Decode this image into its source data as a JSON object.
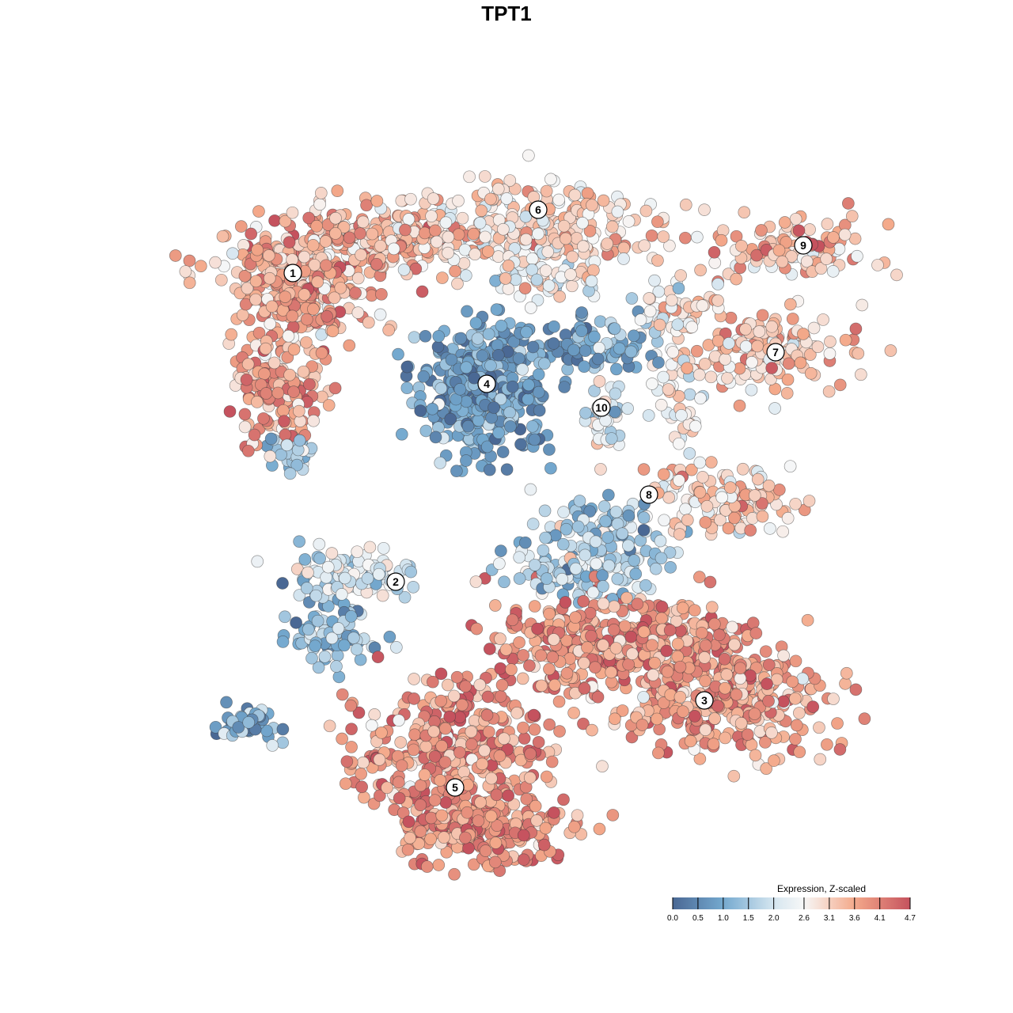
{
  "chart_data": {
    "type": "scatter",
    "title": "TPT1",
    "xlabel": "",
    "ylabel": "",
    "xlim": [
      -9,
      10
    ],
    "ylim": [
      -10,
      9
    ],
    "grid": false,
    "legend": {
      "title": "Expression, Z-scaled",
      "placement": "bottom-right",
      "ticks": [
        0.0,
        0.5,
        1.0,
        1.5,
        2.0,
        2.6,
        3.1,
        3.6,
        4.1,
        4.7
      ],
      "tick_labels": [
        "0.0",
        "0.5",
        "1.0",
        "1.5",
        "2.0",
        "2.6",
        "3.1",
        "3.6",
        "4.1",
        "4.7"
      ],
      "color_stops": [
        {
          "value": 0.0,
          "color": "#4a6894"
        },
        {
          "value": 1.0,
          "color": "#74a9cf"
        },
        {
          "value": 2.0,
          "color": "#d6e6f0"
        },
        {
          "value": 2.6,
          "color": "#f7f7f7"
        },
        {
          "value": 3.6,
          "color": "#f4a98a"
        },
        {
          "value": 4.7,
          "color": "#c5525e"
        }
      ]
    },
    "clusters": [
      {
        "label": "1",
        "center": [
          -5.4,
          5.9
        ],
        "blobs": [
          [
            -5.2,
            5.8,
            1.3,
            1.1,
            350,
            3.5
          ],
          [
            -5.8,
            3.0,
            0.9,
            1.0,
            150,
            3.7
          ],
          [
            -3.0,
            6.8,
            1.5,
            0.7,
            200,
            3.3
          ],
          [
            -5.5,
            1.4,
            0.6,
            0.3,
            40,
            1.6
          ]
        ]
      },
      {
        "label": "6",
        "center": [
          0.8,
          7.5
        ],
        "blobs": [
          [
            0.8,
            7.0,
            2.0,
            0.8,
            300,
            3.0
          ],
          [
            1.0,
            5.8,
            1.0,
            0.4,
            50,
            2.4
          ]
        ]
      },
      {
        "label": "9",
        "center": [
          7.5,
          6.6
        ],
        "blobs": [
          [
            7.3,
            6.5,
            1.5,
            0.5,
            100,
            3.3
          ]
        ]
      },
      {
        "label": "7",
        "center": [
          6.8,
          3.9
        ],
        "blobs": [
          [
            6.5,
            3.9,
            1.6,
            0.7,
            150,
            3.2
          ],
          [
            4.2,
            5.0,
            0.8,
            0.6,
            50,
            2.8
          ]
        ]
      },
      {
        "label": "4",
        "center": [
          -0.5,
          3.1
        ],
        "blobs": [
          [
            -0.6,
            3.0,
            1.1,
            1.2,
            400,
            0.9
          ],
          [
            2.2,
            4.0,
            1.2,
            0.5,
            80,
            1.0
          ]
        ]
      },
      {
        "label": "10",
        "center": [
          2.4,
          2.5
        ],
        "blobs": [
          [
            2.4,
            2.3,
            0.4,
            0.8,
            40,
            2.2
          ]
        ]
      },
      {
        "label": "8",
        "center": [
          3.6,
          0.3
        ],
        "blobs": [
          [
            5.5,
            0.2,
            1.3,
            0.6,
            120,
            3.0
          ],
          [
            2.5,
            -0.5,
            1.3,
            0.5,
            80,
            1.6
          ],
          [
            4.3,
            2.6,
            0.5,
            1.0,
            40,
            2.6
          ]
        ]
      },
      {
        "label": "2",
        "center": [
          -2.8,
          -1.9
        ],
        "blobs": [
          [
            -4.0,
            -1.7,
            1.1,
            0.5,
            100,
            2.0
          ],
          [
            -4.5,
            -3.2,
            0.8,
            0.6,
            80,
            1.3
          ],
          [
            -6.5,
            -5.5,
            0.7,
            0.3,
            40,
            0.9
          ],
          [
            1.8,
            -1.6,
            1.5,
            0.5,
            120,
            1.6
          ]
        ]
      },
      {
        "label": "3",
        "center": [
          5.0,
          -4.9
        ],
        "blobs": [
          [
            2.5,
            -3.5,
            2.3,
            0.9,
            400,
            3.8
          ],
          [
            5.5,
            -4.8,
            1.8,
            1.1,
            350,
            3.7
          ]
        ]
      },
      {
        "label": "5",
        "center": [
          -1.3,
          -7.1
        ],
        "blobs": [
          [
            -1.3,
            -6.3,
            1.8,
            1.4,
            400,
            3.9
          ],
          [
            -0.5,
            -8.2,
            1.5,
            0.6,
            200,
            4.0
          ]
        ]
      }
    ]
  }
}
